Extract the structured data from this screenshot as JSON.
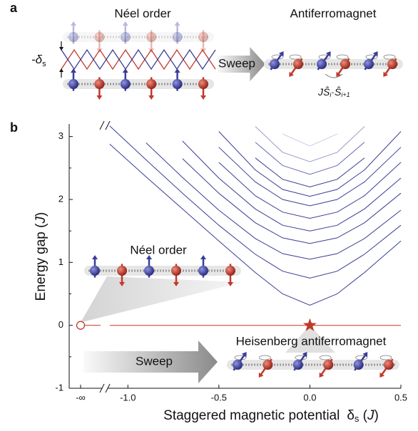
{
  "panel_a": {
    "label": "a",
    "left_title": "Néel order",
    "right_title": "Antiferromagnet",
    "delta": {
      "text": "-δ",
      "sub": "s"
    },
    "sweep": "Sweep",
    "formula": [
      "J",
      "Ŝ",
      "i",
      "·Ŝ",
      "i+1"
    ]
  },
  "panel_b": {
    "label": "b",
    "inset_left": "Néel order",
    "inset_right": "Heisenberg antiferromagnet",
    "sweep": "Sweep",
    "x_infinity_label": "-∞"
  },
  "chart_data": {
    "type": "line",
    "y_label": {
      "text": "Energy gap",
      "unit": "J"
    },
    "x_label": {
      "text": "Staggered magnetic potential",
      "symbol": "δ",
      "sub": "s",
      "unit": "J"
    },
    "x": [
      -1.1,
      -0.9,
      -0.7,
      -0.5,
      -0.3,
      -0.15,
      0,
      0.15,
      0.3,
      0.5
    ],
    "xlim": [
      -1.15,
      0.5
    ],
    "ylim": [
      -1,
      3.2
    ],
    "xticks": [
      {
        "value": -1,
        "label": "-1.0"
      },
      {
        "value": -0.5,
        "label": "-0.5"
      },
      {
        "value": 0,
        "label": "0.0"
      },
      0.5
    ],
    "yticks": [
      -1,
      0,
      1,
      2,
      3
    ],
    "series": [
      {
        "color": "#3a3d96",
        "values": [
          2.88,
          2.36,
          1.85,
          1.34,
          0.84,
          0.5,
          0.32,
          0.5,
          0.84,
          1.34
        ]
      },
      {
        "color": "#3a3d96",
        "values": [
          3.17,
          2.63,
          2.1,
          1.59,
          1.13,
          0.86,
          0.75,
          0.86,
          1.13,
          1.59
        ]
      },
      {
        "color": "#3a3d96",
        "values": [
          null,
          2.9,
          2.35,
          1.83,
          1.38,
          1.14,
          1.05,
          1.14,
          1.38,
          1.83
        ]
      },
      {
        "color": "#3a3d96",
        "values": [
          null,
          null,
          2.65,
          2.1,
          1.63,
          1.39,
          1.3,
          1.39,
          1.63,
          2.1
        ]
      },
      {
        "color": "#3a3d96",
        "values": [
          null,
          null,
          2.93,
          2.34,
          1.85,
          1.59,
          1.5,
          1.59,
          1.85,
          2.34
        ]
      },
      {
        "color": "#3a3d96",
        "values": [
          null,
          null,
          null,
          2.59,
          2.06,
          1.8,
          1.7,
          1.8,
          2.06,
          2.59
        ]
      },
      {
        "color": "#3a3d96",
        "values": [
          null,
          null,
          null,
          2.83,
          2.28,
          2.0,
          1.9,
          2.0,
          2.28,
          2.83
        ]
      },
      {
        "color": "#3a3d96",
        "values": [
          null,
          null,
          null,
          3.08,
          2.47,
          2.16,
          2.05,
          2.16,
          2.47,
          3.08
        ]
      },
      {
        "color": "#3a3d96",
        "values": [
          null,
          null,
          null,
          null,
          2.66,
          2.32,
          2.2,
          2.32,
          2.66,
          null
        ]
      },
      {
        "color": "#6a6db3",
        "values": [
          null,
          null,
          null,
          null,
          2.91,
          2.54,
          2.4,
          2.54,
          2.91,
          null
        ]
      },
      {
        "color": "#9a9cc9",
        "values": [
          null,
          null,
          null,
          null,
          3.16,
          2.75,
          2.6,
          2.75,
          3.16,
          null
        ]
      },
      {
        "color": "#c9cbe4",
        "values": [
          null,
          null,
          null,
          null,
          null,
          3.04,
          2.85,
          3.04,
          null,
          null
        ]
      },
      {
        "color": "#c0392b",
        "values": [
          0,
          0,
          0,
          0,
          0,
          0,
          0,
          0,
          0,
          0
        ]
      }
    ]
  }
}
